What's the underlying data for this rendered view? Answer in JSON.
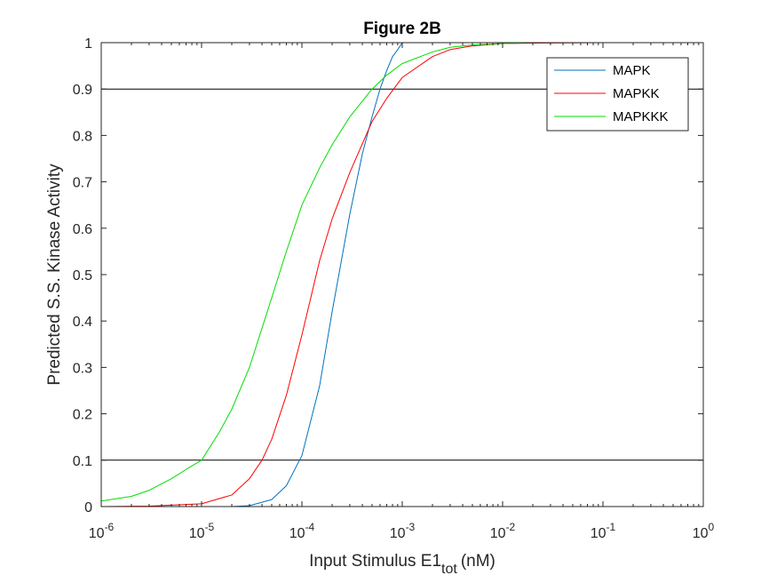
{
  "chart_data": {
    "type": "line",
    "title": "Figure 2B",
    "xlabel": "Input Stimulus E1",
    "xlabel_subscript": "tot",
    "xlabel_unit": "(nM)",
    "ylabel": "Predicted S.S. Kinase Activity",
    "xscale": "log",
    "xlim": [
      1e-06,
      1
    ],
    "ylim": [
      0,
      1
    ],
    "x_ticks": [
      {
        "base": "10",
        "exp": "-6",
        "value": -6
      },
      {
        "base": "10",
        "exp": "-5",
        "value": -5
      },
      {
        "base": "10",
        "exp": "-4",
        "value": -4
      },
      {
        "base": "10",
        "exp": "-3",
        "value": -3
      },
      {
        "base": "10",
        "exp": "-2",
        "value": -2
      },
      {
        "base": "10",
        "exp": "-1",
        "value": -1
      },
      {
        "base": "10",
        "exp": "0",
        "value": 0
      }
    ],
    "y_ticks": [
      "0",
      "0.1",
      "0.2",
      "0.3",
      "0.4",
      "0.5",
      "0.6",
      "0.7",
      "0.8",
      "0.9",
      "1"
    ],
    "reference_lines": [
      0.1,
      0.9
    ],
    "legend_position": "top-right",
    "series": [
      {
        "name": "MAPK",
        "color": "#0072BD",
        "x": [
          1e-05,
          2e-05,
          3e-05,
          5e-05,
          7e-05,
          0.0001,
          0.00015,
          0.0002,
          0.0003,
          0.0004,
          0.0005,
          0.0006,
          0.0007,
          0.0008,
          0.0009,
          0.001
        ],
        "y": [
          0.0,
          0.0,
          0.002,
          0.015,
          0.045,
          0.11,
          0.26,
          0.42,
          0.63,
          0.76,
          0.84,
          0.9,
          0.94,
          0.97,
          0.985,
          1.0
        ]
      },
      {
        "name": "MAPKK",
        "color": "#FF0000",
        "x": [
          1e-06,
          3e-06,
          1e-05,
          2e-05,
          3e-05,
          4e-05,
          5e-05,
          7e-05,
          0.0001,
          0.00015,
          0.0002,
          0.0003,
          0.0005,
          0.0007,
          0.001,
          0.002,
          0.003,
          0.005,
          0.01,
          0.02,
          0.1,
          1
        ],
        "y": [
          0.0,
          0.001,
          0.006,
          0.025,
          0.06,
          0.1,
          0.145,
          0.24,
          0.37,
          0.53,
          0.62,
          0.72,
          0.83,
          0.88,
          0.925,
          0.97,
          0.985,
          0.993,
          0.998,
          0.999,
          1.0,
          1.0
        ]
      },
      {
        "name": "MAPKKK",
        "color": "#00DD00",
        "x": [
          1e-06,
          2e-06,
          3e-06,
          5e-06,
          7e-06,
          1e-05,
          1.5e-05,
          2e-05,
          3e-05,
          5e-05,
          7e-05,
          0.0001,
          0.00015,
          0.0002,
          0.0003,
          0.0005,
          0.0007,
          0.001,
          0.002,
          0.003,
          0.005,
          0.01,
          0.02,
          0.1,
          1
        ],
        "y": [
          0.012,
          0.022,
          0.035,
          0.06,
          0.08,
          0.1,
          0.16,
          0.21,
          0.3,
          0.45,
          0.55,
          0.65,
          0.73,
          0.78,
          0.84,
          0.9,
          0.93,
          0.955,
          0.98,
          0.99,
          0.995,
          0.998,
          1.0,
          1.0,
          1.0
        ]
      }
    ]
  }
}
